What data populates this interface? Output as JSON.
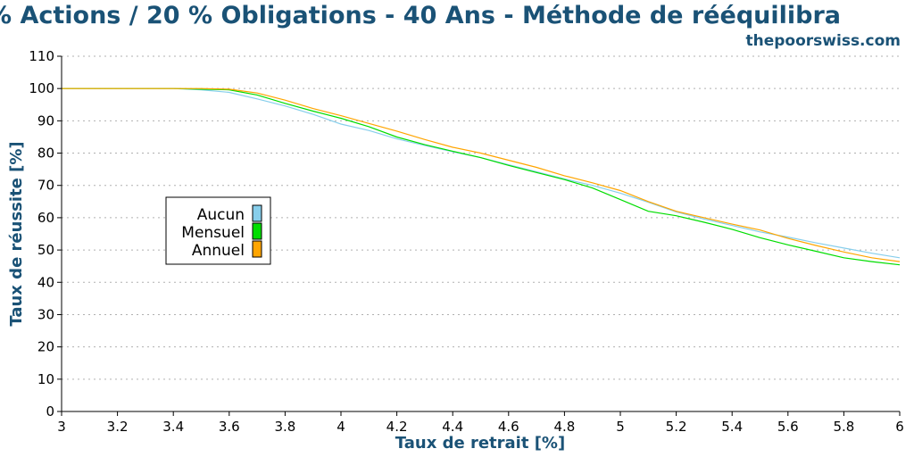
{
  "chart_data": {
    "type": "line",
    "title": "% Actions / 20 % Obligations - 40 Ans - Méthode de rééquilibra",
    "site": "thepoorswiss.com",
    "xlabel": "Taux de retrait [%]",
    "ylabel": "Taux de réussite [%]",
    "xlim": [
      3,
      6
    ],
    "ylim": [
      0,
      110
    ],
    "x_ticks": [
      "3",
      "3.2",
      "3.4",
      "3.6",
      "3.8",
      "4",
      "4.2",
      "4.4",
      "4.6",
      "4.8",
      "5",
      "5.2",
      "5.4",
      "5.6",
      "5.8",
      "6"
    ],
    "y_ticks": [
      "0",
      "10",
      "20",
      "30",
      "40",
      "50",
      "60",
      "70",
      "80",
      "90",
      "100",
      "110"
    ],
    "grid": "horizontal dotted",
    "legend_position": "left-middle",
    "x": [
      3.0,
      3.1,
      3.2,
      3.3,
      3.4,
      3.5,
      3.6,
      3.7,
      3.8,
      3.9,
      4.0,
      4.1,
      4.2,
      4.3,
      4.4,
      4.5,
      4.6,
      4.7,
      4.8,
      4.9,
      5.0,
      5.1,
      5.2,
      5.3,
      5.4,
      5.5,
      5.6,
      5.7,
      5.8,
      5.9,
      6.0
    ],
    "series": [
      {
        "name": "Aucun",
        "color": "#87ceeb",
        "values": [
          100,
          100,
          100,
          100,
          100,
          99.6,
          98.8,
          96.8,
          94.6,
          92.0,
          89.0,
          87.0,
          84.4,
          82.4,
          80.4,
          78.6,
          76.4,
          74.2,
          72.0,
          70.0,
          67.6,
          64.8,
          61.8,
          59.6,
          57.6,
          55.6,
          54.0,
          52.2,
          50.6,
          49.0,
          47.6
        ]
      },
      {
        "name": "Mensuel",
        "color": "#00dd00",
        "values": [
          100,
          100,
          100,
          100,
          100,
          99.8,
          99.6,
          98.0,
          95.4,
          93.0,
          90.8,
          88.2,
          85.0,
          82.6,
          80.6,
          78.6,
          76.2,
          74.0,
          71.8,
          69.2,
          65.6,
          62.0,
          60.6,
          58.6,
          56.4,
          53.8,
          51.6,
          49.6,
          47.6,
          46.4,
          45.4
        ]
      },
      {
        "name": "Annuel",
        "color": "#ffa500",
        "values": [
          100,
          100,
          100,
          100,
          100,
          100,
          99.8,
          98.6,
          96.4,
          93.8,
          91.6,
          89.2,
          86.8,
          84.2,
          81.8,
          80.0,
          77.8,
          75.6,
          73.0,
          70.8,
          68.4,
          65.0,
          62.0,
          60.0,
          58.0,
          56.2,
          53.6,
          51.4,
          49.4,
          47.6,
          46.4
        ]
      }
    ]
  }
}
